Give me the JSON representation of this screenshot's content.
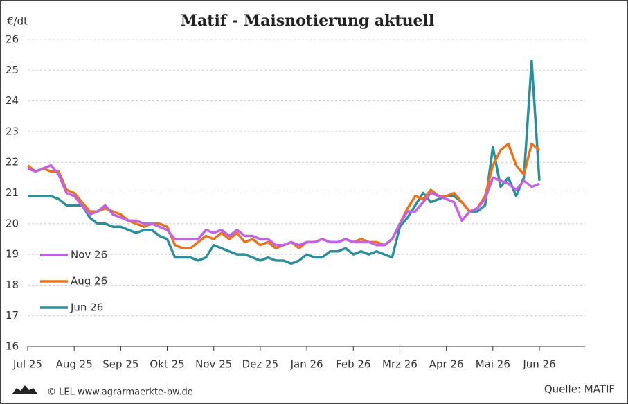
{
  "chart_data": {
    "type": "line",
    "title": "Matif - Maisnotierung aktuell",
    "y_label": "€/dt",
    "source": "Quelle: MATIF",
    "footer": "© LEL www.agrarmaerkte-bw.de",
    "categories": [
      "Jul 25",
      null,
      null,
      null,
      null,
      null,
      "Aug 25",
      null,
      null,
      null,
      null,
      null,
      "Sep 25",
      null,
      null,
      null,
      null,
      null,
      "Okt 25",
      null,
      null,
      null,
      null,
      null,
      "Nov 25",
      null,
      null,
      null,
      null,
      null,
      "Dez 25",
      null,
      null,
      null,
      null,
      null,
      "Jan 26",
      null,
      null,
      null,
      null,
      null,
      "Feb 26",
      null,
      null,
      null,
      null,
      null,
      "Mrz 26",
      null,
      null,
      null,
      null,
      null,
      "Apr 26",
      null,
      null,
      null,
      null,
      null,
      "Mai 26",
      null,
      null,
      null,
      null,
      null,
      "Jun 26"
    ],
    "series": [
      {
        "name": "Nov 26",
        "color": "#c462e6",
        "values": [
          21.8,
          21.7,
          21.8,
          21.9,
          21.6,
          21.0,
          20.9,
          20.6,
          20.3,
          20.4,
          20.6,
          20.3,
          20.2,
          20.1,
          20.1,
          20.0,
          20.0,
          19.9,
          19.8,
          19.5,
          19.5,
          19.5,
          19.5,
          19.8,
          19.7,
          19.8,
          19.6,
          19.8,
          19.6,
          19.6,
          19.5,
          19.5,
          19.3,
          19.3,
          19.4,
          19.3,
          19.4,
          19.4,
          19.5,
          19.4,
          19.4,
          19.5,
          19.4,
          19.4,
          19.4,
          19.3,
          19.3,
          19.5,
          20.0,
          20.4,
          20.4,
          20.7,
          21.0,
          20.9,
          20.8,
          20.7,
          20.1,
          20.4,
          20.5,
          20.8,
          21.5,
          21.4,
          21.3,
          21.1,
          21.4,
          21.2,
          21.3
        ]
      },
      {
        "name": "Aug 26",
        "color": "#e8731c",
        "values": [
          21.9,
          21.7,
          21.8,
          21.7,
          21.7,
          21.1,
          21.0,
          20.7,
          20.4,
          20.4,
          20.5,
          20.4,
          20.3,
          20.1,
          20.0,
          19.9,
          20.0,
          20.0,
          19.9,
          19.3,
          19.2,
          19.2,
          19.4,
          19.6,
          19.5,
          19.7,
          19.5,
          19.7,
          19.4,
          19.5,
          19.3,
          19.4,
          19.2,
          19.3,
          19.4,
          19.2,
          19.4,
          19.4,
          19.5,
          19.4,
          19.4,
          19.5,
          19.4,
          19.5,
          19.4,
          19.4,
          19.3,
          19.5,
          20.0,
          20.5,
          20.9,
          20.8,
          21.1,
          20.9,
          20.9,
          21.0,
          20.7,
          20.4,
          20.5,
          20.9,
          21.9,
          22.4,
          22.6,
          21.9,
          21.6,
          22.6,
          22.4
        ]
      },
      {
        "name": "Jun 26",
        "color": "#2b8e9a",
        "values": [
          20.9,
          20.9,
          20.9,
          20.9,
          20.8,
          20.6,
          20.6,
          20.6,
          20.2,
          20.0,
          20.0,
          19.9,
          19.9,
          19.8,
          19.7,
          19.8,
          19.8,
          19.6,
          19.5,
          18.9,
          18.9,
          18.9,
          18.8,
          18.9,
          19.3,
          19.2,
          19.1,
          19.0,
          19.0,
          18.9,
          18.8,
          18.9,
          18.8,
          18.8,
          18.7,
          18.8,
          19.0,
          18.9,
          18.9,
          19.1,
          19.1,
          19.2,
          19.0,
          19.1,
          19.0,
          19.1,
          19.0,
          18.9,
          19.9,
          20.2,
          20.6,
          21.0,
          20.7,
          20.8,
          20.9,
          20.9,
          20.7,
          20.4,
          20.4,
          20.6,
          22.5,
          21.2,
          21.5,
          20.9,
          21.5,
          25.3,
          21.4
        ]
      }
    ],
    "ylim": [
      16,
      26
    ],
    "yticks": [
      16,
      17,
      18,
      19,
      20,
      21,
      22,
      23,
      24,
      25,
      26
    ],
    "grid": true,
    "legend": "left"
  }
}
